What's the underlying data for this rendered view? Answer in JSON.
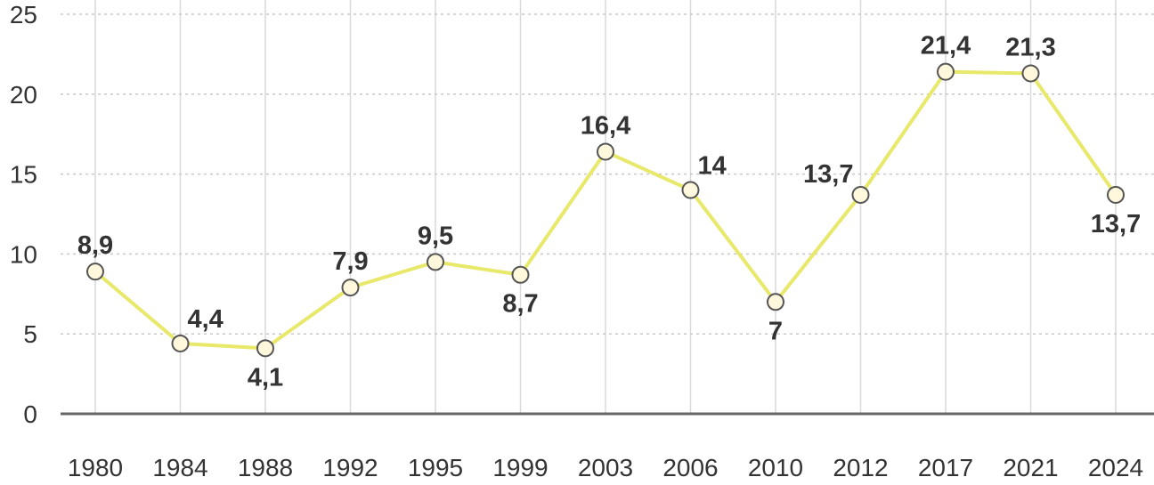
{
  "chart_data": {
    "type": "line",
    "categories": [
      "1980",
      "1984",
      "1988",
      "1992",
      "1995",
      "1999",
      "2003",
      "2006",
      "2010",
      "2012",
      "2017",
      "2021",
      "2024"
    ],
    "series": [
      {
        "values": [
          8.9,
          4.4,
          4.1,
          7.9,
          9.5,
          8.7,
          16.4,
          14,
          7,
          13.7,
          21.4,
          21.3,
          13.7
        ],
        "labels": [
          "8,9",
          "4,4",
          "4,1",
          "7,9",
          "9,5",
          "8,7",
          "16,4",
          "14",
          "7",
          "13,7",
          "21,4",
          "21,3",
          "13,7"
        ],
        "color": "#e8e86a"
      }
    ],
    "yticks": [
      0,
      5,
      10,
      15,
      20,
      25
    ],
    "ylim": [
      0,
      25
    ],
    "title": "",
    "xlabel": "",
    "ylabel": "",
    "grid": true,
    "marker_fill": "#fff8dc",
    "marker_stroke": "#555555"
  }
}
